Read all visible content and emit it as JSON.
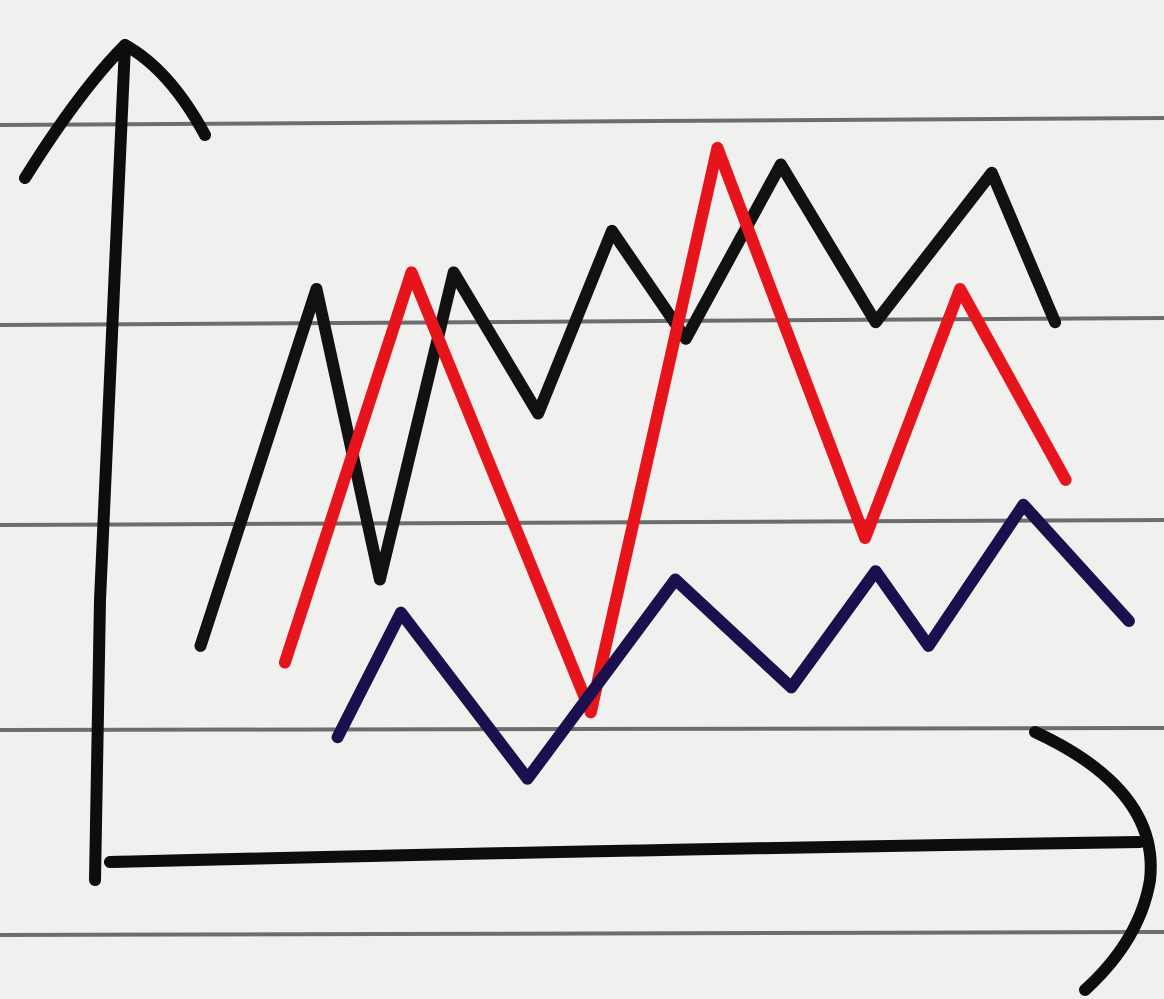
{
  "chart_data": {
    "type": "line",
    "xlim": [
      0,
      100
    ],
    "ylim": [
      0,
      100
    ],
    "series": [
      {
        "color": "#111111",
        "x": [
          10,
          21,
          27,
          34,
          42,
          49,
          56,
          65,
          74,
          85,
          91
        ],
        "values": [
          27,
          70,
          35,
          72,
          55,
          77,
          64,
          85,
          66,
          84,
          66
        ]
      },
      {
        "color": "#e8141c",
        "x": [
          18,
          30,
          47,
          59,
          73,
          82,
          92
        ],
        "values": [
          25,
          72,
          19,
          87,
          40,
          70,
          47
        ]
      },
      {
        "color": "#1c0f4d",
        "x": [
          23,
          29,
          41,
          55,
          66,
          74,
          79,
          88,
          98
        ],
        "values": [
          16,
          31,
          11,
          35,
          22,
          36,
          27,
          44,
          30
        ]
      }
    ]
  }
}
